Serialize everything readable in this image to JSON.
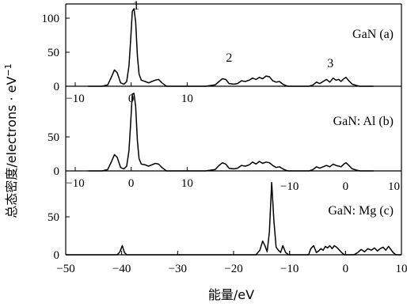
{
  "chart_data": {
    "type": "line",
    "ylabel": "总态密度/electrons · eV",
    "ylabel_sup": "−1",
    "xlabel": "能量/eV",
    "bottom_x_ticks": [
      -50,
      -40,
      -30,
      -20,
      -10,
      0,
      10
    ],
    "panels": [
      {
        "label": "GaN (a)",
        "x_offset": -38.3,
        "ylim": [
          0,
          120
        ],
        "y_ticks": [
          0,
          50,
          100
        ],
        "inner_x_ticks": [
          -10,
          0,
          10
        ],
        "peak_labels": [
          {
            "text": "1",
            "x": -37.4,
            "y": 113
          },
          {
            "text": "2",
            "x": -20.8,
            "y": 36
          },
          {
            "text": "3",
            "x": -2.7,
            "y": 28
          }
        ],
        "x": [
          -46,
          -43.5,
          -42.5,
          -41.8,
          -41.3,
          -40.8,
          -40.2,
          -39.6,
          -39.1,
          -38.7,
          -38.4,
          -38.1,
          -37.8,
          -37.5,
          -37.2,
          -36.9,
          -36.5,
          -35.8,
          -35.2,
          -34.6,
          -34.0,
          -33.4,
          -32.8,
          -32.0,
          -30,
          -25,
          -23.3,
          -22.6,
          -22.0,
          -21.4,
          -20.8,
          -20.0,
          -19.3,
          -18.6,
          -17.9,
          -17.2,
          -16.6,
          -16.0,
          -15.4,
          -14.8,
          -14.2,
          -13.6,
          -13.0,
          -12.4,
          -11.8,
          -11.2,
          -10.7,
          -10.2,
          -9,
          -6.5,
          -5.8,
          -5.2,
          -4.6,
          -4.0,
          -3.4,
          -2.8,
          -2.2,
          -1.7,
          -1.2,
          -0.8,
          -0.3,
          0.1,
          0.6,
          1.2,
          2.0,
          2.6,
          5.0
        ],
        "y": [
          0,
          0,
          2,
          14,
          24,
          20,
          5,
          3,
          7,
          30,
          68,
          110,
          114,
          95,
          45,
          18,
          9,
          7,
          5,
          7,
          9,
          10,
          5,
          0,
          0,
          0,
          2,
          7,
          11,
          10,
          4,
          3,
          4,
          8,
          7,
          9,
          12,
          10,
          13,
          11,
          15,
          14,
          8,
          6,
          7,
          3,
          1,
          0,
          0,
          0,
          2,
          6,
          4,
          7,
          10,
          6,
          12,
          9,
          10,
          7,
          11,
          13,
          8,
          3,
          1,
          0,
          0
        ]
      },
      {
        "label": "GaN: Al (b)",
        "x_offset": -38.3,
        "ylim": [
          0,
          120
        ],
        "y_ticks": [
          0,
          50
        ],
        "inner_x_ticks": [
          -10,
          0,
          10
        ],
        "peak_labels": [],
        "x": [
          -46,
          -43.5,
          -42.5,
          -41.8,
          -41.3,
          -40.8,
          -40.2,
          -39.6,
          -39.1,
          -38.7,
          -38.4,
          -38.1,
          -37.8,
          -37.5,
          -37.2,
          -36.9,
          -36.5,
          -35.8,
          -35.2,
          -34.6,
          -34.0,
          -33.4,
          -32.8,
          -32.0,
          -30,
          -25,
          -23.3,
          -22.6,
          -22.0,
          -21.4,
          -20.8,
          -20.0,
          -19.3,
          -18.6,
          -17.9,
          -17.2,
          -16.6,
          -16.0,
          -15.4,
          -14.8,
          -14.2,
          -13.6,
          -13.0,
          -12.4,
          -11.8,
          -11.2,
          -10.7,
          -10.2,
          -9,
          -6.5,
          -5.8,
          -5.2,
          -4.6,
          -4.0,
          -3.4,
          -2.8,
          -2.2,
          -1.7,
          -1.2,
          -0.8,
          -0.3,
          0.1,
          0.6,
          1.2,
          2.0,
          2.6,
          5.0
        ],
        "y": [
          0,
          0,
          2,
          14,
          24,
          20,
          5,
          3,
          7,
          30,
          70,
          113,
          114,
          95,
          45,
          18,
          10,
          9,
          7,
          9,
          11,
          10,
          5,
          0,
          0,
          0,
          2,
          8,
          12,
          10,
          4,
          3,
          4,
          8,
          7,
          9,
          13,
          10,
          14,
          11,
          13,
          12,
          8,
          5,
          6,
          3,
          1,
          0,
          0,
          0,
          2,
          6,
          4,
          6,
          8,
          6,
          10,
          8,
          7,
          6,
          10,
          12,
          8,
          3,
          1,
          0,
          0
        ]
      },
      {
        "label": "GaN: Mg (c)",
        "x_offset": 0,
        "ylim": [
          0,
          100
        ],
        "y_ticks": [
          0,
          50
        ],
        "inner_x_ticks": [
          -10,
          0,
          10
        ],
        "peak_labels": [],
        "x": [
          -50,
          -40.8,
          -40.3,
          -39.9,
          -39.5,
          -39.1,
          -16,
          -15.3,
          -14.8,
          -14.4,
          -14.0,
          -13.6,
          -13.2,
          -12.8,
          -12.4,
          -12.0,
          -11.6,
          -11.2,
          -10.7,
          -10.2,
          -8,
          -6.6,
          -6.2,
          -5.7,
          -5.2,
          -4.8,
          -4.4,
          -4.0,
          -3.6,
          -3.2,
          -2.8,
          -2.4,
          -2.0,
          -1.6,
          -1.2,
          -0.7,
          -0.2,
          1.5,
          2.2,
          2.8,
          3.4,
          4.0,
          4.6,
          5.2,
          5.7,
          6.2,
          6.7,
          7.2,
          7.7,
          8.1,
          8.5,
          9.0,
          10.0
        ],
        "y": [
          0,
          0,
          4,
          12,
          3,
          0,
          0,
          6,
          18,
          12,
          4,
          30,
          95,
          45,
          10,
          6,
          3,
          12,
          3,
          0,
          0,
          0,
          8,
          12,
          3,
          5,
          8,
          6,
          11,
          9,
          12,
          8,
          12,
          10,
          7,
          3,
          0,
          0,
          3,
          7,
          4,
          8,
          6,
          9,
          5,
          8,
          10,
          6,
          11,
          7,
          3,
          0,
          0
        ]
      }
    ]
  }
}
